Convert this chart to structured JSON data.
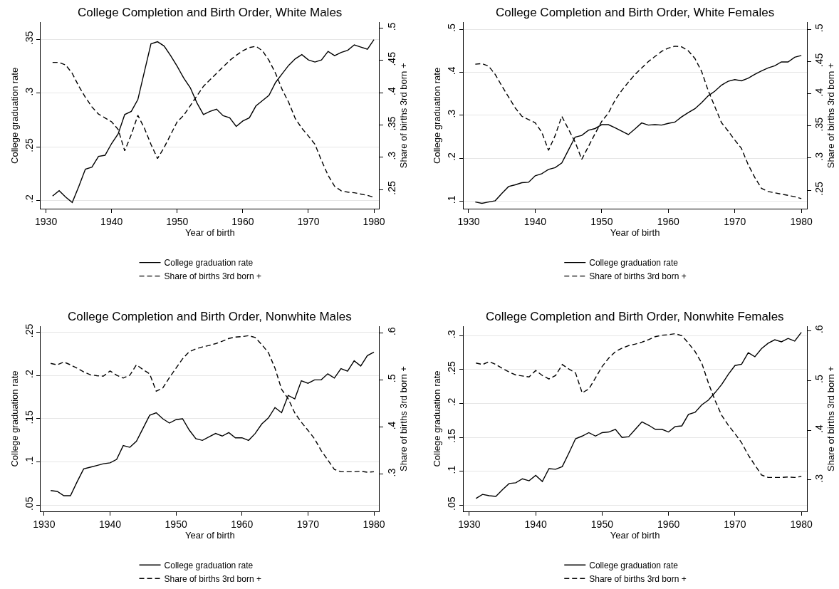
{
  "chart_data": [
    {
      "type": "line",
      "title": "College Completion and Birth Order, White Males",
      "xlabel": "Year of birth",
      "ylabel": "College graduation rate",
      "y2label": "Share of births 3rd born +",
      "legend": "bottom",
      "grid": "y",
      "x": [
        1931,
        1932,
        1933,
        1934,
        1935,
        1936,
        1937,
        1938,
        1939,
        1940,
        1941,
        1942,
        1943,
        1944,
        1945,
        1946,
        1947,
        1948,
        1949,
        1950,
        1951,
        1952,
        1953,
        1954,
        1955,
        1956,
        1957,
        1958,
        1959,
        1960,
        1961,
        1962,
        1963,
        1964,
        1965,
        1966,
        1967,
        1968,
        1969,
        1970,
        1971,
        1972,
        1973,
        1974,
        1975,
        1976,
        1977,
        1978,
        1979,
        1980
      ],
      "xlim": [
        1929.2,
        1980.8
      ],
      "xticks": [
        1930,
        1940,
        1950,
        1960,
        1970,
        1980
      ],
      "ylim": [
        0.192,
        0.366
      ],
      "yticks": [
        {
          "value": 0.2,
          "label": ".2"
        },
        {
          "value": 0.25,
          "label": ".25"
        },
        {
          "value": 0.3,
          "label": ".3"
        },
        {
          "value": 0.35,
          "label": ".35"
        }
      ],
      "y2lim": [
        0.22,
        0.509
      ],
      "y2ticks": [
        {
          "value": 0.25,
          "label": ".25"
        },
        {
          "value": 0.3,
          "label": ".3"
        },
        {
          "value": 0.35,
          "label": ".35"
        },
        {
          "value": 0.4,
          "label": ".4"
        },
        {
          "value": 0.45,
          "label": ".45"
        },
        {
          "value": 0.5,
          "label": ".5"
        }
      ],
      "series": [
        {
          "name": "College graduation rate",
          "color": "#000000",
          "line_style": "solid",
          "values": [
            0.204,
            0.209,
            0.203,
            0.198,
            0.213,
            0.229,
            0.231,
            0.241,
            0.242,
            0.253,
            0.262,
            0.28,
            0.283,
            0.294,
            0.32,
            0.346,
            0.348,
            0.344,
            0.335,
            0.325,
            0.314,
            0.305,
            0.291,
            0.28,
            0.283,
            0.285,
            0.279,
            0.277,
            0.269,
            0.274,
            0.277,
            0.288,
            0.293,
            0.298,
            0.31,
            0.318,
            0.326,
            0.332,
            0.336,
            0.331,
            0.329,
            0.331,
            0.339,
            0.335,
            0.338,
            0.34,
            0.345,
            0.343,
            0.341,
            0.35
          ]
        },
        {
          "name": "Share of births 3rd born +",
          "color": "#000000",
          "line_style": "dashed",
          "axis": "y2",
          "values": [
            0.447,
            0.447,
            0.443,
            0.43,
            0.41,
            0.393,
            0.378,
            0.367,
            0.361,
            0.355,
            0.343,
            0.31,
            0.335,
            0.365,
            0.345,
            0.32,
            0.298,
            0.315,
            0.335,
            0.355,
            0.365,
            0.38,
            0.395,
            0.41,
            0.42,
            0.43,
            0.44,
            0.45,
            0.458,
            0.465,
            0.47,
            0.472,
            0.465,
            0.45,
            0.43,
            0.405,
            0.385,
            0.36,
            0.345,
            0.333,
            0.32,
            0.295,
            0.272,
            0.255,
            0.248,
            0.246,
            0.245,
            0.243,
            0.241,
            0.238
          ]
        }
      ]
    },
    {
      "type": "line",
      "title": "College Completion and Birth Order, White Females",
      "xlabel": "Year of birth",
      "ylabel": "College graduation rate",
      "y2label": "Share of births 3rd born +",
      "legend": "bottom",
      "grid": "y",
      "x": [
        1931,
        1932,
        1933,
        1934,
        1935,
        1936,
        1937,
        1938,
        1939,
        1940,
        1941,
        1942,
        1943,
        1944,
        1945,
        1946,
        1947,
        1948,
        1949,
        1950,
        1951,
        1952,
        1953,
        1954,
        1955,
        1956,
        1957,
        1958,
        1959,
        1960,
        1961,
        1962,
        1963,
        1964,
        1965,
        1966,
        1967,
        1968,
        1969,
        1970,
        1971,
        1972,
        1973,
        1974,
        1975,
        1976,
        1977,
        1978,
        1979,
        1980
      ],
      "xlim": [
        1929.2,
        1980.8
      ],
      "xticks": [
        1930,
        1940,
        1950,
        1960,
        1970,
        1980
      ],
      "ylim": [
        0.082,
        0.516
      ],
      "yticks": [
        {
          "value": 0.1,
          "label": ".1"
        },
        {
          "value": 0.2,
          "label": ".2"
        },
        {
          "value": 0.3,
          "label": ".3"
        },
        {
          "value": 0.4,
          "label": ".4"
        },
        {
          "value": 0.5,
          "label": ".5"
        }
      ],
      "y2lim": [
        0.221,
        0.511
      ],
      "y2ticks": [
        {
          "value": 0.25,
          "label": ".25"
        },
        {
          "value": 0.3,
          "label": ".3"
        },
        {
          "value": 0.35,
          "label": ".35"
        },
        {
          "value": 0.4,
          "label": ".4"
        },
        {
          "value": 0.45,
          "label": ".45"
        },
        {
          "value": 0.5,
          "label": ".5"
        }
      ],
      "series": [
        {
          "name": "College graduation rate",
          "color": "#000000",
          "line_style": "solid",
          "values": [
            0.098,
            0.095,
            0.098,
            0.101,
            0.118,
            0.134,
            0.138,
            0.143,
            0.144,
            0.159,
            0.164,
            0.174,
            0.178,
            0.189,
            0.219,
            0.249,
            0.253,
            0.265,
            0.269,
            0.278,
            0.278,
            0.271,
            0.263,
            0.255,
            0.268,
            0.282,
            0.277,
            0.278,
            0.277,
            0.281,
            0.284,
            0.296,
            0.306,
            0.315,
            0.329,
            0.345,
            0.356,
            0.37,
            0.379,
            0.383,
            0.38,
            0.386,
            0.395,
            0.403,
            0.41,
            0.415,
            0.424,
            0.424,
            0.435,
            0.439
          ]
        },
        {
          "name": "Share of births 3rd born +",
          "color": "#000000",
          "line_style": "dashed",
          "axis": "y2",
          "values": [
            0.446,
            0.447,
            0.443,
            0.43,
            0.412,
            0.395,
            0.378,
            0.365,
            0.36,
            0.355,
            0.34,
            0.312,
            0.335,
            0.365,
            0.345,
            0.325,
            0.298,
            0.318,
            0.338,
            0.357,
            0.37,
            0.39,
            0.405,
            0.418,
            0.43,
            0.44,
            0.45,
            0.458,
            0.466,
            0.471,
            0.474,
            0.473,
            0.467,
            0.455,
            0.435,
            0.405,
            0.38,
            0.355,
            0.342,
            0.328,
            0.315,
            0.29,
            0.27,
            0.253,
            0.248,
            0.246,
            0.244,
            0.242,
            0.24,
            0.237
          ]
        }
      ]
    },
    {
      "type": "line",
      "title": "College Completion and Birth Order, Nonwhite Males",
      "xlabel": "Year of birth",
      "ylabel": "College graduation rate",
      "y2label": "Share of births 3rd born +",
      "legend": "bottom",
      "grid": "y",
      "x": [
        1931,
        1932,
        1933,
        1934,
        1935,
        1936,
        1937,
        1938,
        1939,
        1940,
        1941,
        1942,
        1943,
        1944,
        1945,
        1946,
        1947,
        1948,
        1949,
        1950,
        1951,
        1952,
        1953,
        1954,
        1955,
        1956,
        1957,
        1958,
        1959,
        1960,
        1961,
        1962,
        1963,
        1964,
        1965,
        1966,
        1967,
        1968,
        1969,
        1970,
        1971,
        1972,
        1973,
        1974,
        1975,
        1976,
        1977,
        1978,
        1979,
        1980
      ],
      "xlim": [
        1929.5,
        1980.8
      ],
      "xticks": [
        1930,
        1940,
        1950,
        1960,
        1970,
        1980
      ],
      "ylim": [
        0.043,
        0.257
      ],
      "yticks": [
        {
          "value": 0.05,
          "label": ".05"
        },
        {
          "value": 0.1,
          "label": ".1"
        },
        {
          "value": 0.15,
          "label": ".15"
        },
        {
          "value": 0.2,
          "label": ".2"
        },
        {
          "value": 0.25,
          "label": ".25"
        }
      ],
      "y2lim": [
        0.221,
        0.614
      ],
      "y2ticks": [
        {
          "value": 0.3,
          "label": ".3"
        },
        {
          "value": 0.4,
          "label": ".4"
        },
        {
          "value": 0.5,
          "label": ".5"
        },
        {
          "value": 0.6,
          "label": ".6"
        }
      ],
      "series": [
        {
          "name": "College graduation rate",
          "color": "#000000",
          "line_style": "solid",
          "values": [
            0.067,
            0.066,
            0.061,
            0.061,
            0.077,
            0.092,
            0.094,
            0.096,
            0.098,
            0.099,
            0.103,
            0.119,
            0.117,
            0.124,
            0.139,
            0.154,
            0.157,
            0.15,
            0.145,
            0.149,
            0.15,
            0.137,
            0.127,
            0.125,
            0.129,
            0.133,
            0.13,
            0.134,
            0.128,
            0.128,
            0.125,
            0.133,
            0.144,
            0.151,
            0.163,
            0.157,
            0.177,
            0.173,
            0.194,
            0.191,
            0.195,
            0.195,
            0.202,
            0.197,
            0.208,
            0.205,
            0.217,
            0.211,
            0.223,
            0.227
          ]
        },
        {
          "name": "Share of births 3rd born +",
          "color": "#000000",
          "line_style": "dashed",
          "axis": "y2",
          "values": [
            0.535,
            0.532,
            0.538,
            0.532,
            0.525,
            0.517,
            0.511,
            0.509,
            0.508,
            0.519,
            0.51,
            0.504,
            0.51,
            0.532,
            0.522,
            0.513,
            0.476,
            0.483,
            0.505,
            0.525,
            0.545,
            0.56,
            0.566,
            0.57,
            0.573,
            0.577,
            0.582,
            0.588,
            0.591,
            0.592,
            0.594,
            0.59,
            0.575,
            0.558,
            0.525,
            0.48,
            0.46,
            0.43,
            0.41,
            0.393,
            0.375,
            0.35,
            0.33,
            0.31,
            0.305,
            0.305,
            0.305,
            0.306,
            0.304,
            0.305
          ]
        }
      ]
    },
    {
      "type": "line",
      "title": "College Completion and Birth Order, Nonwhite Females",
      "xlabel": "Year of birth",
      "ylabel": "College graduation rate",
      "y2label": "Share of births 3rd born +",
      "legend": "bottom",
      "grid": "y",
      "x": [
        1931,
        1932,
        1933,
        1934,
        1935,
        1936,
        1937,
        1938,
        1939,
        1940,
        1941,
        1942,
        1943,
        1944,
        1945,
        1946,
        1947,
        1948,
        1949,
        1950,
        1951,
        1952,
        1953,
        1954,
        1955,
        1956,
        1957,
        1958,
        1959,
        1960,
        1961,
        1962,
        1963,
        1964,
        1965,
        1966,
        1967,
        1968,
        1969,
        1970,
        1971,
        1972,
        1973,
        1974,
        1975,
        1976,
        1977,
        1978,
        1979,
        1980
      ],
      "xlim": [
        1929.1,
        1980.8
      ],
      "xticks": [
        1930,
        1940,
        1950,
        1960,
        1970,
        1980
      ],
      "ylim": [
        0.041,
        0.314
      ],
      "yticks": [
        {
          "value": 0.05,
          "label": ".05"
        },
        {
          "value": 0.1,
          "label": ".1"
        },
        {
          "value": 0.15,
          "label": ".15"
        },
        {
          "value": 0.2,
          "label": ".2"
        },
        {
          "value": 0.25,
          "label": ".25"
        },
        {
          "value": 0.3,
          "label": ".3"
        }
      ],
      "y2lim": [
        0.237,
        0.609
      ],
      "y2ticks": [
        {
          "value": 0.3,
          "label": ".3"
        },
        {
          "value": 0.4,
          "label": ".4"
        },
        {
          "value": 0.5,
          "label": ".5"
        },
        {
          "value": 0.6,
          "label": ".6"
        }
      ],
      "series": [
        {
          "name": "College graduation rate",
          "color": "#000000",
          "line_style": "solid",
          "values": [
            0.06,
            0.066,
            0.064,
            0.063,
            0.073,
            0.082,
            0.083,
            0.089,
            0.086,
            0.094,
            0.085,
            0.104,
            0.103,
            0.107,
            0.127,
            0.148,
            0.152,
            0.157,
            0.152,
            0.157,
            0.158,
            0.162,
            0.15,
            0.151,
            0.162,
            0.173,
            0.168,
            0.162,
            0.162,
            0.158,
            0.166,
            0.167,
            0.184,
            0.187,
            0.198,
            0.205,
            0.216,
            0.228,
            0.243,
            0.256,
            0.258,
            0.275,
            0.269,
            0.281,
            0.289,
            0.294,
            0.291,
            0.296,
            0.292,
            0.305
          ]
        },
        {
          "name": "Share of births 3rd born +",
          "color": "#000000",
          "line_style": "dashed",
          "axis": "y2",
          "values": [
            0.535,
            0.532,
            0.538,
            0.532,
            0.524,
            0.517,
            0.511,
            0.509,
            0.507,
            0.52,
            0.51,
            0.503,
            0.51,
            0.532,
            0.523,
            0.515,
            0.475,
            0.483,
            0.505,
            0.528,
            0.545,
            0.558,
            0.565,
            0.57,
            0.573,
            0.577,
            0.582,
            0.588,
            0.591,
            0.592,
            0.594,
            0.59,
            0.575,
            0.558,
            0.535,
            0.495,
            0.46,
            0.43,
            0.41,
            0.393,
            0.375,
            0.35,
            0.33,
            0.31,
            0.305,
            0.305,
            0.305,
            0.306,
            0.305,
            0.307
          ]
        }
      ]
    }
  ]
}
